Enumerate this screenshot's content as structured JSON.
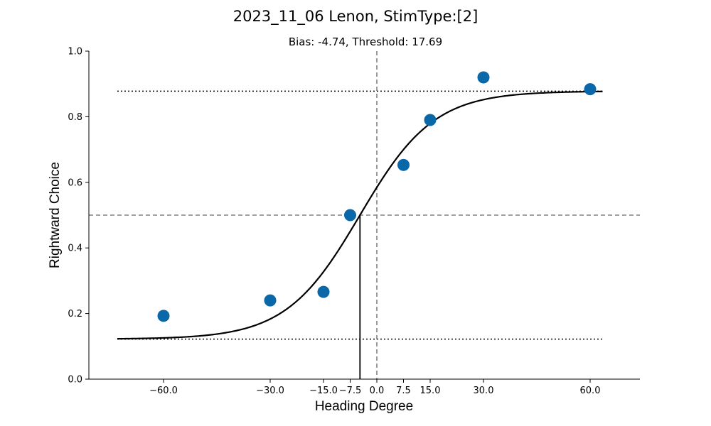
{
  "chart_data": {
    "type": "scatter",
    "title": "2023_11_06 Lenon, StimType:[2]",
    "subtitle": "Bias: -4.74, Threshold: 17.69",
    "xlabel": "Heading Degree",
    "ylabel": "Rightward Choice",
    "xlim": [
      -81,
      74
    ],
    "ylim": [
      0,
      1.0
    ],
    "x_ticks": [
      -60,
      -30,
      -15,
      -7.5,
      0,
      7.5,
      15,
      30,
      60
    ],
    "x_tick_labels": [
      "−60.0",
      "−30.0",
      "−15.0",
      "−7.5",
      "0.0",
      "7.5",
      "15.0",
      "30.0",
      "60.0"
    ],
    "y_ticks": [
      0.0,
      0.2,
      0.4,
      0.6,
      0.8,
      1.0
    ],
    "y_tick_labels": [
      "0.0",
      "0.2",
      "0.4",
      "0.6",
      "0.8",
      "1.0"
    ],
    "points": {
      "x": [
        -60,
        -30,
        -15,
        -7.5,
        7.5,
        15,
        30,
        60
      ],
      "y": [
        0.193,
        0.24,
        0.266,
        0.5,
        0.653,
        0.79,
        0.92,
        0.884
      ],
      "color": "#0a67a8"
    },
    "fit": {
      "bias": -4.74,
      "sigma": 17.69,
      "lower_asymptote": 0.122,
      "upper_asymptote": 0.878,
      "x_range": [
        -73,
        63.5
      ],
      "color": "#000000"
    },
    "reference_lines": {
      "vertical_x": 0,
      "horizontal_y": 0.5,
      "dotted_levels": [
        0.878,
        0.122
      ],
      "bias_marker_x": -4.74,
      "color": "#808080"
    },
    "grid": false,
    "spines": "left-bottom"
  }
}
